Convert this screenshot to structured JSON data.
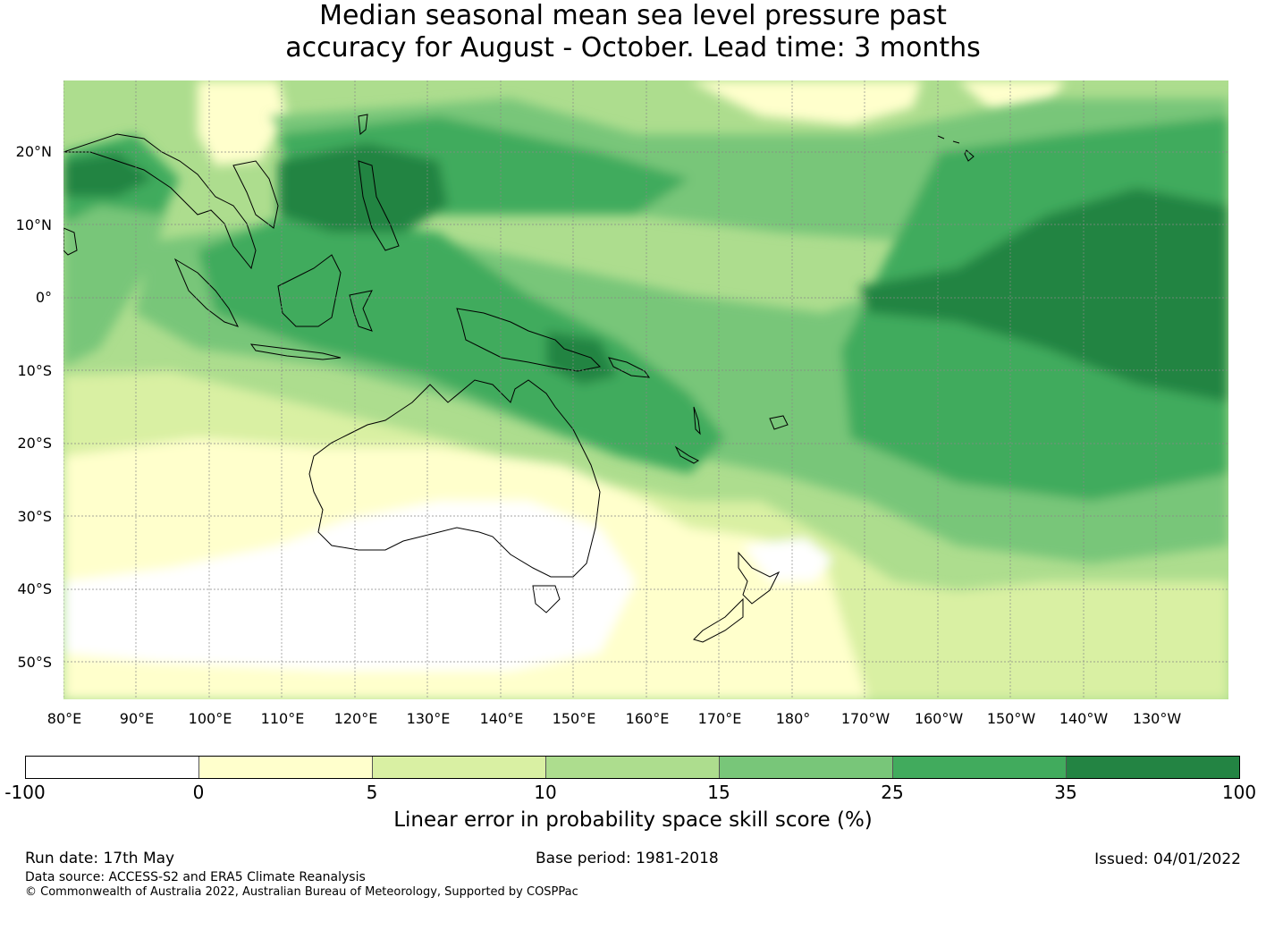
{
  "title": {
    "line1": "Median seasonal mean sea level pressure past",
    "line2": "accuracy for August - October. Lead time: 3 months"
  },
  "map": {
    "lat_labels": [
      "20°N",
      "10°N",
      "0°",
      "10°S",
      "20°S",
      "30°S",
      "40°S",
      "50°S"
    ],
    "lon_labels": [
      "80°E",
      "90°E",
      "100°E",
      "110°E",
      "120°E",
      "130°E",
      "140°E",
      "150°E",
      "160°E",
      "170°E",
      "180°",
      "170°W",
      "160°W",
      "150°W",
      "140°W",
      "130°W"
    ],
    "colors": {
      "c0": "#ffffff",
      "c1": "#ffffcc",
      "c2": "#d9f0a3",
      "c3": "#addd8e",
      "c4": "#78c679",
      "c5": "#41ab5d",
      "c6": "#238443",
      "coast": "#000000",
      "grid": "#888888"
    }
  },
  "colorbar": {
    "ticks": [
      "-100",
      "0",
      "5",
      "10",
      "15",
      "25",
      "35",
      "100"
    ],
    "colors": [
      "#ffffff",
      "#ffffcc",
      "#d9f0a3",
      "#addd8e",
      "#78c679",
      "#41ab5d",
      "#238443"
    ],
    "label": "Linear error in probability space skill score (%)"
  },
  "footer": {
    "run_date": "Run date: 17th May",
    "base_period": "Base period: 1981-2018",
    "issued": "Issued: 04/01/2022",
    "data_source": "Data source: ACCESS-S2 and ERA5 Climate Reanalysis",
    "copyright": "© Commonwealth of Australia 2022, Australian Bureau of Meteorology, Supported by COSPPac"
  }
}
